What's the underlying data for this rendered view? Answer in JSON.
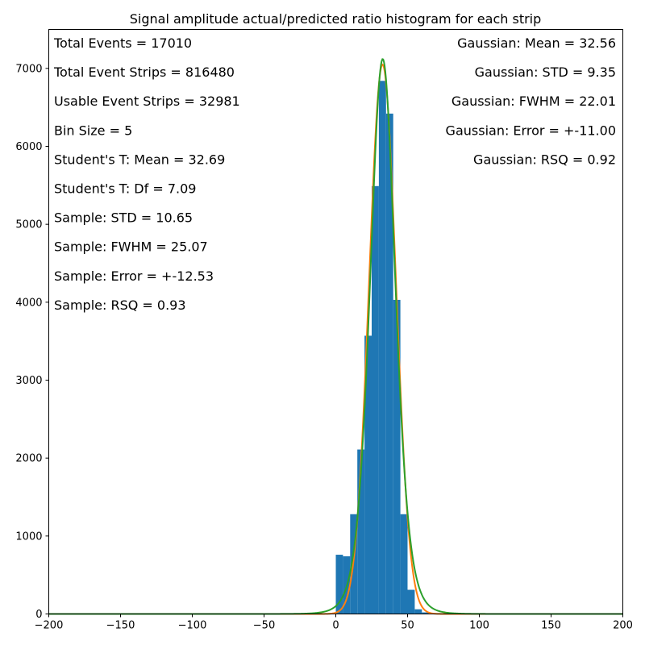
{
  "chart_data": {
    "type": "bar",
    "title": "Signal amplitude actual/predicted ratio histogram for each strip",
    "xlabel": "",
    "ylabel": "",
    "xlim": [
      -200,
      200
    ],
    "ylim": [
      0,
      7500
    ],
    "x_ticks": [
      -200,
      -150,
      -100,
      -50,
      0,
      50,
      100,
      150,
      200
    ],
    "x_tick_labels": [
      "−200",
      "−150",
      "−100",
      "−50",
      "0",
      "50",
      "100",
      "150",
      "200"
    ],
    "y_ticks": [
      0,
      1000,
      2000,
      3000,
      4000,
      5000,
      6000,
      7000
    ],
    "y_tick_labels": [
      "0",
      "1000",
      "2000",
      "3000",
      "4000",
      "5000",
      "6000",
      "7000"
    ],
    "bin_width": 5,
    "histogram": {
      "bin_left_edges": [
        0,
        5,
        10,
        15,
        20,
        25,
        30,
        35,
        40,
        45,
        50,
        55,
        60
      ],
      "counts": [
        760,
        740,
        1280,
        2110,
        3570,
        5490,
        6840,
        6420,
        4030,
        1280,
        310,
        60,
        20
      ],
      "color": "#1f77b4"
    },
    "series": [
      {
        "type": "curve",
        "distribution": "gaussian",
        "mean": 32.56,
        "std": 9.35,
        "peak": 7050,
        "color": "#ff7f0e"
      },
      {
        "type": "curve",
        "distribution": "student-t",
        "mean": 32.69,
        "df": 7.09,
        "scale": 9.0,
        "peak": 7120,
        "color": "#2ca02c"
      }
    ],
    "grid": false,
    "annotations_left": [
      "Total Events = 17010",
      "Total Event Strips = 816480",
      "Usable Event Strips = 32981",
      "Bin Size = 5",
      "Student's T: Mean = 32.69",
      "Student's T: Df = 7.09",
      "Sample: STD = 10.65",
      "Sample: FWHM = 25.07",
      "Sample: Error = +-12.53",
      "Sample: RSQ = 0.93"
    ],
    "annotations_right": [
      "Gaussian: Mean = 32.56",
      "Gaussian: STD = 9.35",
      "Gaussian: FWHM = 22.01",
      "Gaussian: Error = +-11.00",
      "Gaussian: RSQ = 0.92"
    ]
  }
}
